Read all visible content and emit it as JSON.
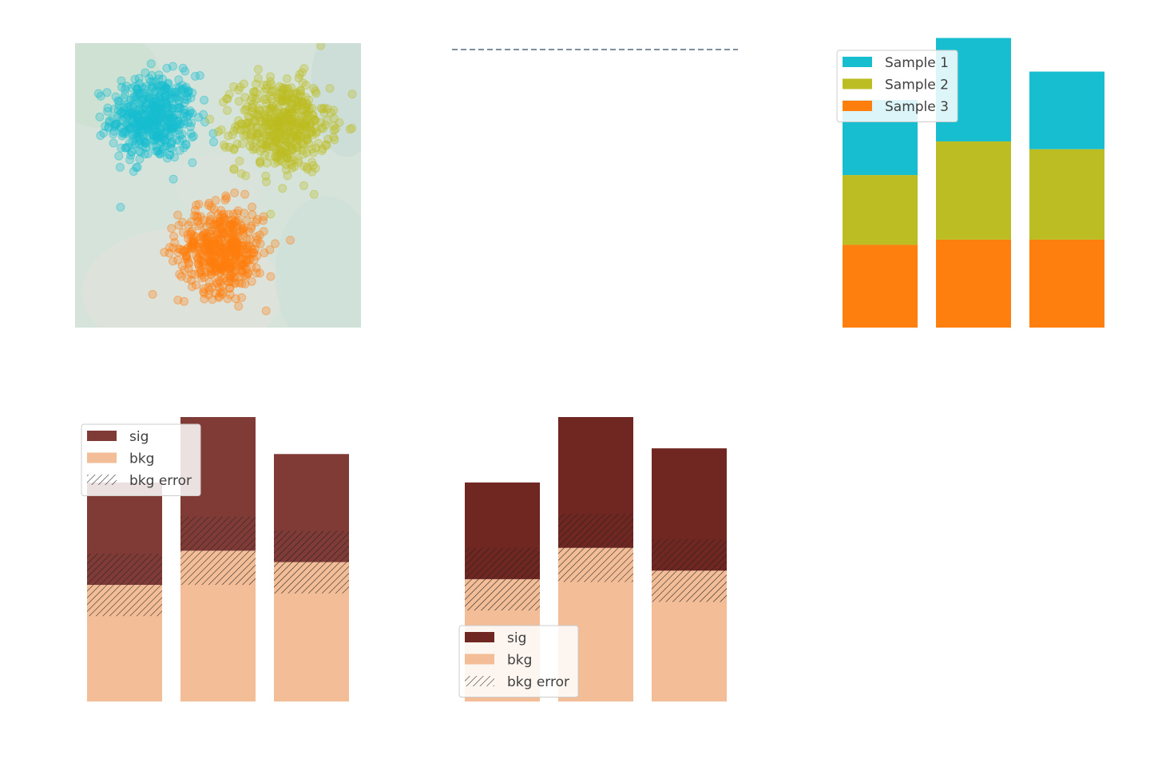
{
  "colors": {
    "sample_1": "#17becf",
    "sample_2": "#bcbd22",
    "sample_3": "#ff7f0e",
    "sig_left": "#813b37",
    "sig_right": "#702621",
    "bkg": "#f2bd97",
    "scatter_background": "#d5e3da",
    "dashed_line": "#7f8fa0",
    "hatch": "#222222"
  },
  "chart_data": [
    {
      "type": "scatter",
      "panel": "top-left",
      "title": "",
      "xlabel": "",
      "ylabel": "",
      "grid": false,
      "background": "filled contour",
      "xlim": [
        -4,
        4
      ],
      "ylim": [
        -4,
        4
      ],
      "series": [
        {
          "color_key": "sample_1",
          "center": [
            -1.8,
            1.9
          ],
          "spread": 0.6,
          "count": 500
        },
        {
          "color_key": "sample_2",
          "center": [
            1.8,
            1.7
          ],
          "spread": 0.65,
          "count": 500
        },
        {
          "color_key": "sample_3",
          "center": [
            0.1,
            -1.8
          ],
          "spread": 0.6,
          "count": 500
        }
      ]
    },
    {
      "type": "line",
      "panel": "top-center",
      "title": "",
      "style": "dashed",
      "x": [
        0,
        1
      ],
      "y": [
        1,
        1
      ],
      "xlim": [
        0,
        1
      ],
      "ylim": [
        0,
        1
      ]
    },
    {
      "type": "bar",
      "panel": "top-right",
      "stacked": true,
      "legend_position": "top-left",
      "categories": [
        "",
        "",
        ""
      ],
      "ylim": [
        0,
        11
      ],
      "series": [
        {
          "name": "Sample 3",
          "color_key": "sample_3",
          "values": [
            3.2,
            3.4,
            3.4
          ]
        },
        {
          "name": "Sample 2",
          "color_key": "sample_2",
          "values": [
            2.7,
            3.8,
            3.5
          ]
        },
        {
          "name": "Sample 1",
          "color_key": "sample_1",
          "values": [
            2.9,
            4.0,
            3.0
          ]
        }
      ],
      "legend_order": [
        "Sample 1",
        "Sample 2",
        "Sample 3"
      ]
    },
    {
      "type": "bar",
      "panel": "bottom-left",
      "stacked": true,
      "legend_position": "top-left",
      "categories": [
        "",
        "",
        ""
      ],
      "ylim": [
        0,
        10
      ],
      "series": [
        {
          "name": "bkg",
          "color_key": "bkg",
          "values": [
            4.1,
            5.3,
            4.9
          ]
        },
        {
          "name": "sig",
          "color_key": "sig_left",
          "values": [
            3.6,
            4.7,
            3.8
          ]
        }
      ],
      "bkg_error": [
        1.1,
        1.2,
        1.1
      ],
      "error_name": "bkg error",
      "legend_order": [
        "sig",
        "bkg",
        "bkg error"
      ]
    },
    {
      "type": "bar",
      "panel": "bottom-center",
      "stacked": true,
      "legend_position": "bottom-left",
      "categories": [
        "",
        "",
        ""
      ],
      "ylim": [
        0,
        10
      ],
      "series": [
        {
          "name": "bkg",
          "color_key": "bkg",
          "values": [
            4.3,
            5.4,
            4.6
          ]
        },
        {
          "name": "sig",
          "color_key": "sig_right",
          "values": [
            3.4,
            4.6,
            4.3
          ]
        }
      ],
      "bkg_error": [
        1.1,
        1.2,
        1.1
      ],
      "error_name": "bkg error",
      "legend_order": [
        "sig",
        "bkg",
        "bkg error"
      ]
    }
  ]
}
